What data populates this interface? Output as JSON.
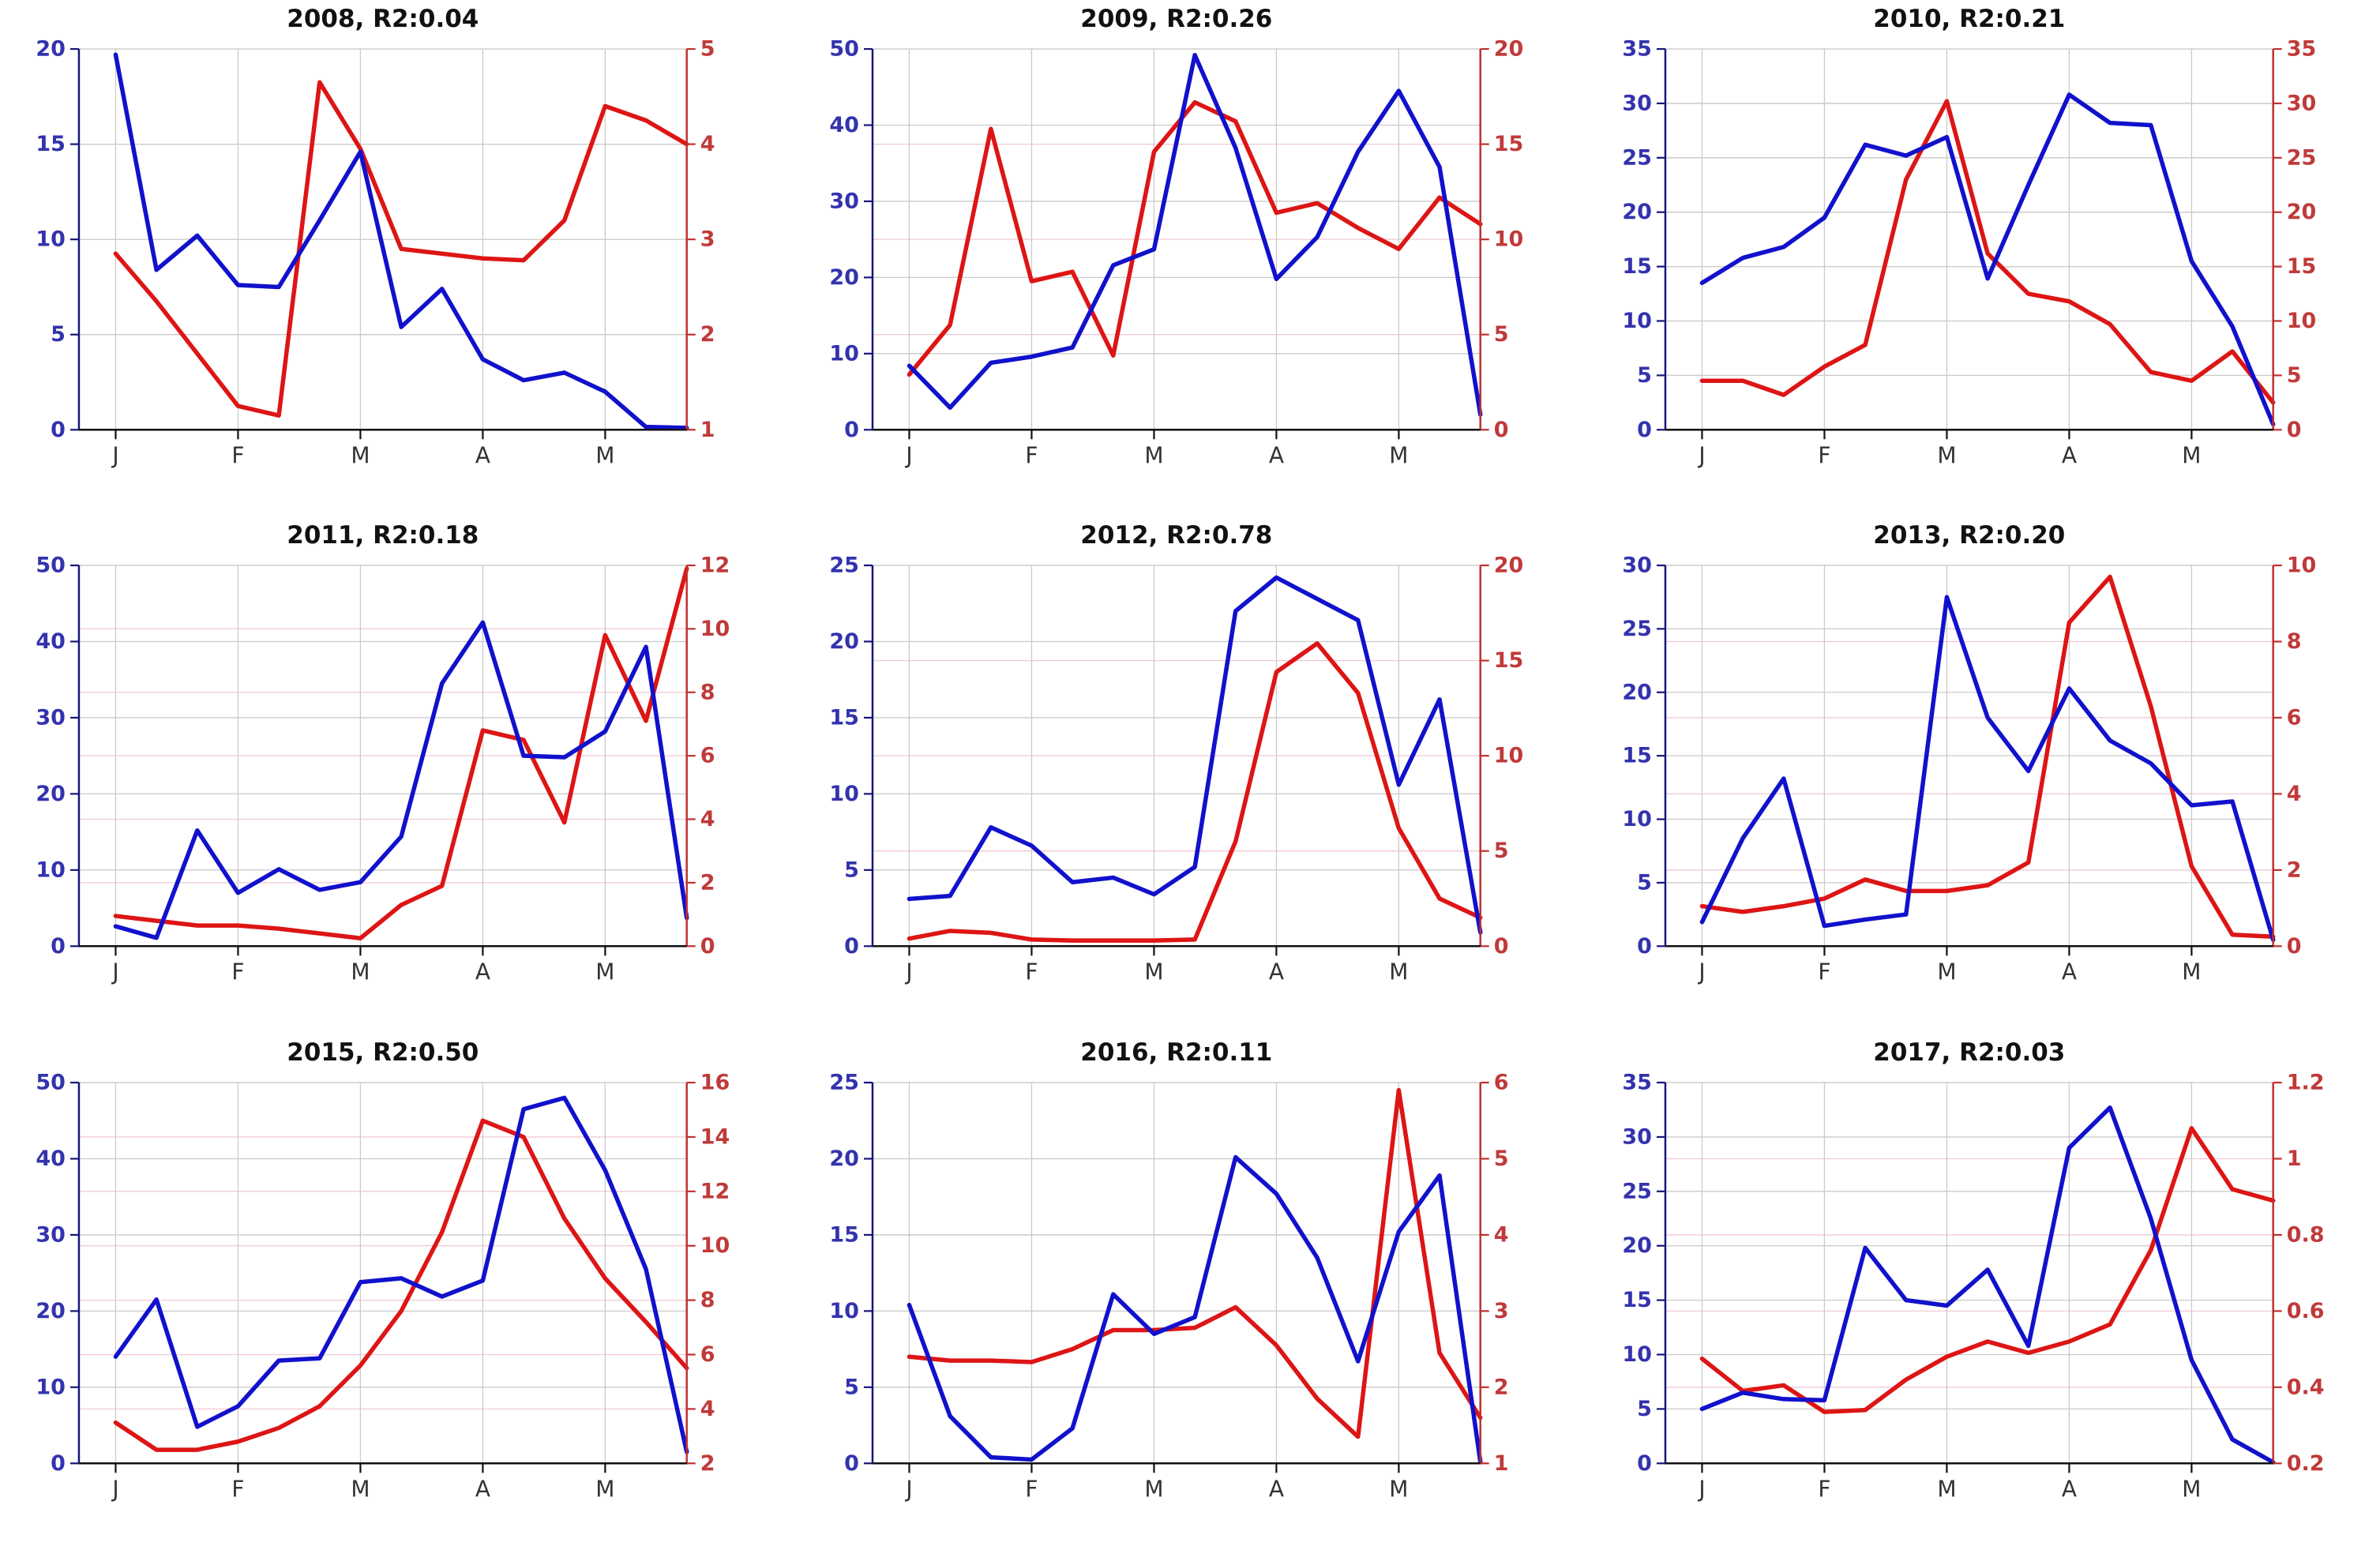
{
  "page": {
    "background": "#ffffff"
  },
  "style": {
    "blue_line": "#1111CC",
    "red_line": "#DD1515",
    "left_label_color": "#3333AE",
    "left_spine_color": "#16167A",
    "right_label_color": "#C03A3A",
    "right_spine_color": "#C03030",
    "bottom_spine_color": "#111111",
    "x_label_color": "#333333",
    "grid_color": "#CBCBCB",
    "right_grid_color": "#F1C9D4",
    "title_color": "#111111"
  },
  "chart_data": [
    {
      "type": "line",
      "title": "2008, R2:0.04",
      "xlim": [
        -0.9,
        14
      ],
      "x_ticks": {
        "positions": [
          0,
          3,
          6,
          9,
          12
        ],
        "labels": [
          "J",
          "F",
          "M",
          "A",
          "M"
        ]
      },
      "left_axis": {
        "lim": [
          0,
          20
        ],
        "ticks": [
          0,
          5,
          10,
          15,
          20
        ]
      },
      "right_axis": {
        "lim": [
          1,
          5
        ],
        "ticks": [
          1,
          2,
          3,
          4,
          5
        ]
      },
      "series": [
        {
          "name": "red-series",
          "axis": "right",
          "color_key": "red_line",
          "values": [
            2.85,
            2.35,
            1.8,
            1.25,
            1.15,
            4.65,
            3.95,
            2.9,
            2.85,
            2.8,
            2.78,
            3.2,
            4.4,
            4.25,
            4.0
          ]
        },
        {
          "name": "blue-series",
          "axis": "left",
          "color_key": "blue_line",
          "values": [
            19.7,
            8.4,
            10.2,
            7.6,
            7.5,
            11.0,
            14.6,
            5.4,
            7.4,
            3.7,
            2.6,
            3.0,
            2.0,
            0.15,
            0.1
          ]
        }
      ]
    },
    {
      "type": "line",
      "title": "2009, R2:0.26",
      "xlim": [
        -0.9,
        14
      ],
      "x_ticks": {
        "positions": [
          0,
          3,
          6,
          9,
          12
        ],
        "labels": [
          "J",
          "F",
          "M",
          "A",
          "M"
        ]
      },
      "left_axis": {
        "lim": [
          0,
          50
        ],
        "ticks": [
          0,
          10,
          20,
          30,
          40,
          50
        ]
      },
      "right_axis": {
        "lim": [
          0,
          20
        ],
        "ticks": [
          0,
          5,
          10,
          15,
          20
        ]
      },
      "series": [
        {
          "name": "red-series",
          "axis": "right",
          "color_key": "red_line",
          "values": [
            2.9,
            5.5,
            15.8,
            7.8,
            8.3,
            3.9,
            14.6,
            17.2,
            16.2,
            11.4,
            11.9,
            10.6,
            9.5,
            12.2,
            10.8
          ]
        },
        {
          "name": "blue-series",
          "axis": "left",
          "color_key": "blue_line",
          "values": [
            8.4,
            2.9,
            8.8,
            9.6,
            10.8,
            21.6,
            23.7,
            49.2,
            37.0,
            19.8,
            25.3,
            36.5,
            44.5,
            34.5,
            2.0
          ]
        }
      ]
    },
    {
      "type": "line",
      "title": "2010, R2:0.21",
      "xlim": [
        -0.9,
        14
      ],
      "x_ticks": {
        "positions": [
          0,
          3,
          6,
          9,
          12
        ],
        "labels": [
          "J",
          "F",
          "M",
          "A",
          "M"
        ]
      },
      "left_axis": {
        "lim": [
          0,
          35
        ],
        "ticks": [
          0,
          5,
          10,
          15,
          20,
          25,
          30,
          35
        ]
      },
      "right_axis": {
        "lim": [
          0,
          35
        ],
        "ticks": [
          0,
          5,
          10,
          15,
          20,
          25,
          30,
          35
        ]
      },
      "series": [
        {
          "name": "red-series",
          "axis": "right",
          "color_key": "red_line",
          "values": [
            4.5,
            4.5,
            3.2,
            5.8,
            7.8,
            23.0,
            30.2,
            16.2,
            12.5,
            11.8,
            9.7,
            5.3,
            4.5,
            7.2,
            2.5
          ]
        },
        {
          "name": "blue-series",
          "axis": "left",
          "color_key": "blue_line",
          "values": [
            13.5,
            15.8,
            16.8,
            19.5,
            26.2,
            25.2,
            26.9,
            13.9,
            22.5,
            30.8,
            28.2,
            28.0,
            15.5,
            9.5,
            0.5
          ]
        }
      ]
    },
    {
      "type": "line",
      "title": "2011, R2:0.18",
      "xlim": [
        -0.9,
        14
      ],
      "x_ticks": {
        "positions": [
          0,
          3,
          6,
          9,
          12
        ],
        "labels": [
          "J",
          "F",
          "M",
          "A",
          "M"
        ]
      },
      "left_axis": {
        "lim": [
          0,
          50
        ],
        "ticks": [
          0,
          10,
          20,
          30,
          40,
          50
        ]
      },
      "right_axis": {
        "lim": [
          0,
          12
        ],
        "ticks": [
          0,
          2,
          4,
          6,
          8,
          10,
          12
        ]
      },
      "series": [
        {
          "name": "red-series",
          "axis": "right",
          "color_key": "red_line",
          "values": [
            0.95,
            0.8,
            0.65,
            0.65,
            0.55,
            0.4,
            0.25,
            1.3,
            1.9,
            6.8,
            6.5,
            3.9,
            9.8,
            7.1,
            11.9
          ]
        },
        {
          "name": "blue-series",
          "axis": "left",
          "color_key": "blue_line",
          "values": [
            2.6,
            1.1,
            15.2,
            7.0,
            10.1,
            7.4,
            8.4,
            14.4,
            34.5,
            42.5,
            25.0,
            24.8,
            28.2,
            39.3,
            3.7
          ]
        }
      ]
    },
    {
      "type": "line",
      "title": "2012, R2:0.78",
      "xlim": [
        -0.9,
        14
      ],
      "x_ticks": {
        "positions": [
          0,
          3,
          6,
          9,
          12
        ],
        "labels": [
          "J",
          "F",
          "M",
          "A",
          "M"
        ]
      },
      "left_axis": {
        "lim": [
          0,
          25
        ],
        "ticks": [
          0,
          5,
          10,
          15,
          20,
          25
        ]
      },
      "right_axis": {
        "lim": [
          0,
          20
        ],
        "ticks": [
          0,
          5,
          10,
          15,
          20
        ]
      },
      "series": [
        {
          "name": "red-series",
          "axis": "right",
          "color_key": "red_line",
          "values": [
            0.4,
            0.8,
            0.7,
            0.35,
            0.3,
            0.3,
            0.3,
            0.35,
            5.5,
            14.4,
            15.9,
            13.3,
            6.2,
            2.5,
            1.5
          ]
        },
        {
          "name": "blue-series",
          "axis": "left",
          "color_key": "blue_line",
          "values": [
            3.1,
            3.3,
            7.8,
            6.6,
            4.2,
            4.5,
            3.4,
            5.2,
            22.0,
            24.2,
            22.8,
            21.4,
            10.6,
            16.2,
            0.9
          ]
        }
      ]
    },
    {
      "type": "line",
      "title": "2013, R2:0.20",
      "xlim": [
        -0.9,
        14
      ],
      "x_ticks": {
        "positions": [
          0,
          3,
          6,
          9,
          12
        ],
        "labels": [
          "J",
          "F",
          "M",
          "A",
          "M"
        ]
      },
      "left_axis": {
        "lim": [
          0,
          30
        ],
        "ticks": [
          0,
          5,
          10,
          15,
          20,
          25,
          30
        ]
      },
      "right_axis": {
        "lim": [
          0,
          10
        ],
        "ticks": [
          0,
          2,
          4,
          6,
          8,
          10
        ]
      },
      "series": [
        {
          "name": "red-series",
          "axis": "right",
          "color_key": "red_line",
          "values": [
            1.05,
            0.9,
            1.05,
            1.25,
            1.75,
            1.45,
            1.45,
            1.6,
            2.2,
            8.5,
            9.7,
            6.3,
            2.1,
            0.3,
            0.25
          ]
        },
        {
          "name": "blue-series",
          "axis": "left",
          "color_key": "blue_line",
          "values": [
            1.9,
            8.5,
            13.2,
            1.6,
            2.1,
            2.5,
            27.5,
            18.0,
            13.8,
            20.3,
            16.2,
            14.4,
            11.1,
            11.4,
            0.5
          ]
        }
      ]
    },
    {
      "type": "line",
      "title": "2015, R2:0.50",
      "xlim": [
        -0.9,
        14
      ],
      "x_ticks": {
        "positions": [
          0,
          3,
          6,
          9,
          12
        ],
        "labels": [
          "J",
          "F",
          "M",
          "A",
          "M"
        ]
      },
      "left_axis": {
        "lim": [
          0,
          50
        ],
        "ticks": [
          0,
          10,
          20,
          30,
          40,
          50
        ]
      },
      "right_axis": {
        "lim": [
          2,
          16
        ],
        "ticks": [
          2,
          4,
          6,
          8,
          10,
          12,
          14,
          16
        ]
      },
      "series": [
        {
          "name": "red-series",
          "axis": "right",
          "color_key": "red_line",
          "values": [
            3.5,
            2.5,
            2.5,
            2.8,
            3.3,
            4.1,
            5.6,
            7.6,
            10.5,
            14.6,
            14.0,
            11.0,
            8.8,
            7.2,
            5.5
          ]
        },
        {
          "name": "blue-series",
          "axis": "left",
          "color_key": "blue_line",
          "values": [
            14.0,
            21.5,
            4.8,
            7.5,
            13.5,
            13.8,
            23.8,
            24.3,
            21.9,
            24.0,
            46.5,
            48.0,
            38.5,
            25.5,
            1.5
          ]
        }
      ]
    },
    {
      "type": "line",
      "title": "2016, R2:0.11",
      "xlim": [
        -0.9,
        14
      ],
      "x_ticks": {
        "positions": [
          0,
          3,
          6,
          9,
          12
        ],
        "labels": [
          "J",
          "F",
          "M",
          "A",
          "M"
        ]
      },
      "left_axis": {
        "lim": [
          0,
          25
        ],
        "ticks": [
          0,
          5,
          10,
          15,
          20,
          25
        ]
      },
      "right_axis": {
        "lim": [
          1,
          6
        ],
        "ticks": [
          1,
          2,
          3,
          4,
          5,
          6
        ]
      },
      "series": [
        {
          "name": "red-series",
          "axis": "right",
          "color_key": "red_line",
          "values": [
            2.4,
            2.35,
            2.35,
            2.33,
            2.5,
            2.75,
            2.75,
            2.78,
            3.05,
            2.55,
            1.85,
            1.35,
            5.9,
            2.45,
            1.6
          ]
        },
        {
          "name": "blue-series",
          "axis": "left",
          "color_key": "blue_line",
          "values": [
            10.4,
            3.1,
            0.4,
            0.25,
            2.3,
            11.1,
            8.5,
            9.6,
            20.1,
            17.7,
            13.5,
            6.7,
            15.2,
            18.9,
            0.1
          ]
        }
      ]
    },
    {
      "type": "line",
      "title": "2017, R2:0.03",
      "xlim": [
        -0.9,
        14
      ],
      "x_ticks": {
        "positions": [
          0,
          3,
          6,
          9,
          12
        ],
        "labels": [
          "J",
          "F",
          "M",
          "A",
          "M"
        ]
      },
      "left_axis": {
        "lim": [
          0,
          35
        ],
        "ticks": [
          0,
          5,
          10,
          15,
          20,
          25,
          30,
          35
        ]
      },
      "right_axis": {
        "lim": [
          0.2,
          1.2
        ],
        "ticks": [
          0.2,
          0.4,
          0.6,
          0.8,
          1,
          1.2
        ]
      },
      "series": [
        {
          "name": "red-series",
          "axis": "right",
          "color_key": "red_line",
          "values": [
            0.475,
            0.39,
            0.405,
            0.335,
            0.34,
            0.42,
            0.48,
            0.52,
            0.49,
            0.52,
            0.565,
            0.76,
            1.08,
            0.92,
            0.89
          ]
        },
        {
          "name": "blue-series",
          "axis": "left",
          "color_key": "blue_line",
          "values": [
            5.0,
            6.5,
            5.9,
            5.8,
            19.8,
            15.0,
            14.5,
            17.8,
            10.8,
            29.0,
            32.7,
            22.5,
            9.5,
            2.2,
            0.1
          ]
        }
      ]
    }
  ]
}
